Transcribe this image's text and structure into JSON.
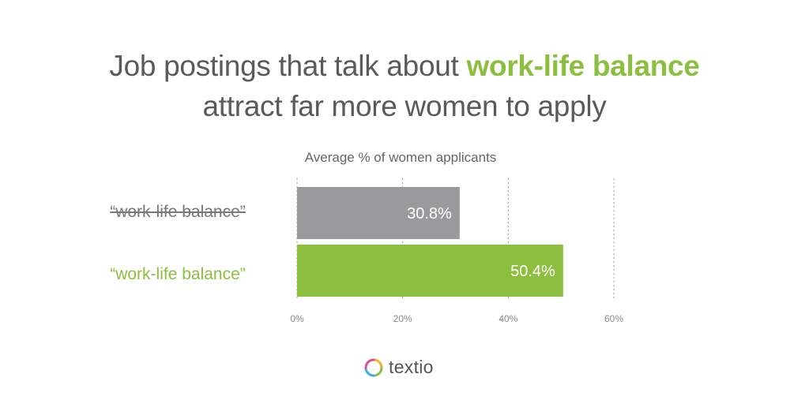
{
  "header": {
    "title_prefix": "Job postings that talk about",
    "title_highlight": "work-life balance",
    "title_line2": "attract far more women to apply"
  },
  "brand": {
    "name": "textio",
    "colors": {
      "green": "#8cbf3f",
      "gray_bar": "#9a999b",
      "text": "#5a5a5a"
    }
  },
  "chart_data": {
    "type": "bar",
    "orientation": "horizontal",
    "title": "Average % of women applicants",
    "categories": [
      "“work-life balance”",
      "“work-life balance”"
    ],
    "category_styles": [
      "strikethrough",
      "highlight"
    ],
    "values": [
      30.8,
      50.4
    ],
    "value_labels": [
      "30.8%",
      "50.4%"
    ],
    "bar_colors": [
      "#9a999b",
      "#8cbf3f"
    ],
    "xlim": [
      0,
      60
    ],
    "xticks": [
      0,
      20,
      40,
      60
    ],
    "xtick_labels": [
      "0%",
      "20%",
      "40%",
      "60%"
    ],
    "grid": "vertical dotted",
    "xlabel": "",
    "ylabel": ""
  }
}
